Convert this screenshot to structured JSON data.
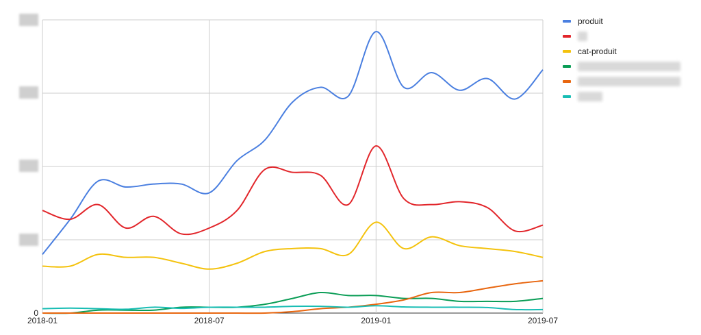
{
  "chart_data": {
    "type": "line",
    "title": "",
    "xlabel": "",
    "ylabel": "",
    "x_ticks": [
      "2018-01",
      "2018-07",
      "2019-01",
      "2019-07"
    ],
    "x": [
      "2018-01",
      "2018-02",
      "2018-03",
      "2018-04",
      "2018-05",
      "2018-06",
      "2018-07",
      "2018-08",
      "2018-09",
      "2018-10",
      "2018-11",
      "2018-12",
      "2019-01",
      "2019-02",
      "2019-03",
      "2019-04",
      "2019-05",
      "2019-06",
      "2019-07"
    ],
    "y_ticks": [
      "0"
    ],
    "ylim": [
      0,
      100
    ],
    "grid": true,
    "legend_position": "right",
    "series": [
      {
        "name": "produit",
        "color": "#4a7fe0",
        "values": [
          20,
          32,
          45,
          43,
          44,
          44,
          41,
          52,
          59,
          72,
          77,
          74,
          96,
          77,
          82,
          76,
          80,
          73,
          83
        ]
      },
      {
        "name": "",
        "color": "#e2262b",
        "values": [
          35,
          32,
          37,
          29,
          33,
          27,
          29,
          35,
          49,
          48,
          47,
          37,
          57,
          39,
          37,
          38,
          36,
          28,
          30
        ]
      },
      {
        "name": "cat-produit",
        "color": "#f4c20d",
        "values": [
          16,
          16,
          20,
          19,
          19,
          17,
          15,
          17,
          21,
          22,
          22,
          20,
          31,
          22,
          26,
          23,
          22,
          21,
          19
        ]
      },
      {
        "name": "",
        "color": "#0a9d56",
        "values": [
          0,
          0,
          1,
          1,
          1,
          2,
          2,
          2,
          3,
          5,
          7,
          6,
          6,
          5,
          5,
          4,
          4,
          4,
          5
        ]
      },
      {
        "name": "",
        "color": "#e8660f",
        "values": [
          0,
          0,
          0,
          0,
          0,
          0,
          0,
          0,
          0,
          0.5,
          1.5,
          2,
          3,
          4.5,
          7,
          7,
          8.5,
          10,
          11
        ]
      },
      {
        "name": "",
        "color": "#18bdb4",
        "values": [
          1.5,
          1.7,
          1.5,
          1.3,
          2,
          1.6,
          2,
          2,
          2,
          2.3,
          2.3,
          2,
          2.5,
          2.1,
          2,
          2,
          1.9,
          1.2,
          1.2
        ]
      }
    ]
  }
}
